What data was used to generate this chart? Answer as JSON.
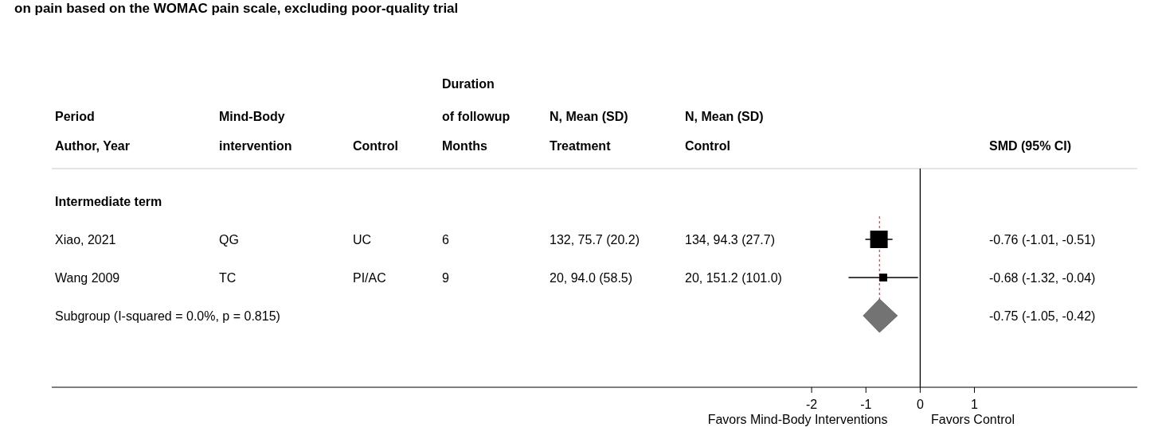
{
  "chart_data": {
    "type": "scatter",
    "orientation": "horizontal",
    "title": "on pain based on the WOMAC pain scale, excluding poor-quality trial",
    "categories": [
      "Intermediate term",
      "Xiao, 2021",
      "Wang 2009",
      "Subgroup (I-squared = 0.0%, p = 0.815)"
    ],
    "series": [
      {
        "type": "scatter",
        "marker": "square",
        "color": "#000000",
        "values": [
          null,
          -0.76,
          -0.68,
          null
        ],
        "errors": [
          null,
          [
            -1.01,
            -0.51
          ],
          [
            -1.32,
            -0.04
          ],
          null
        ],
        "sizes": [
          null,
          1,
          0.2,
          null
        ]
      },
      {
        "type": "scatter",
        "marker": "diamond",
        "color": "#737373",
        "values": [
          null,
          null,
          null,
          -0.75
        ],
        "errors": [
          null,
          null,
          null,
          [
            -1.05,
            -0.42
          ]
        ]
      }
    ],
    "xlim": [
      -16,
      4
    ],
    "xticks": [
      -2,
      -1,
      0,
      1
    ],
    "ref_lines": [
      {
        "axis": "x",
        "value": 0,
        "color": "#000000",
        "line_style": "solid"
      },
      {
        "axis": "x",
        "value": -0.75,
        "color": "#b0504f",
        "line_style": "dashed"
      }
    ],
    "annotations": [
      "Duration",
      "Period",
      "Mind-Body",
      "of followup",
      "N, Mean (SD)",
      "N, Mean (SD)",
      "Author, Year",
      "intervention",
      "Control",
      "Months",
      "Treatment",
      "Control",
      "SMD (95% CI)",
      "QG",
      "UC",
      "6",
      "132, 75.7 (20.2)",
      "134, 94.3 (27.7)",
      "-0.76 (-1.01, -0.51)",
      "TC",
      "PI/AC",
      "9",
      "20, 94.0 (58.5)",
      "20, 151.2 (101.0)",
      "-0.68 (-1.32, -0.04)",
      "-0.75 (-1.05, -0.42)",
      "Favors Mind-Body Interventions",
      "Favors Control"
    ]
  }
}
